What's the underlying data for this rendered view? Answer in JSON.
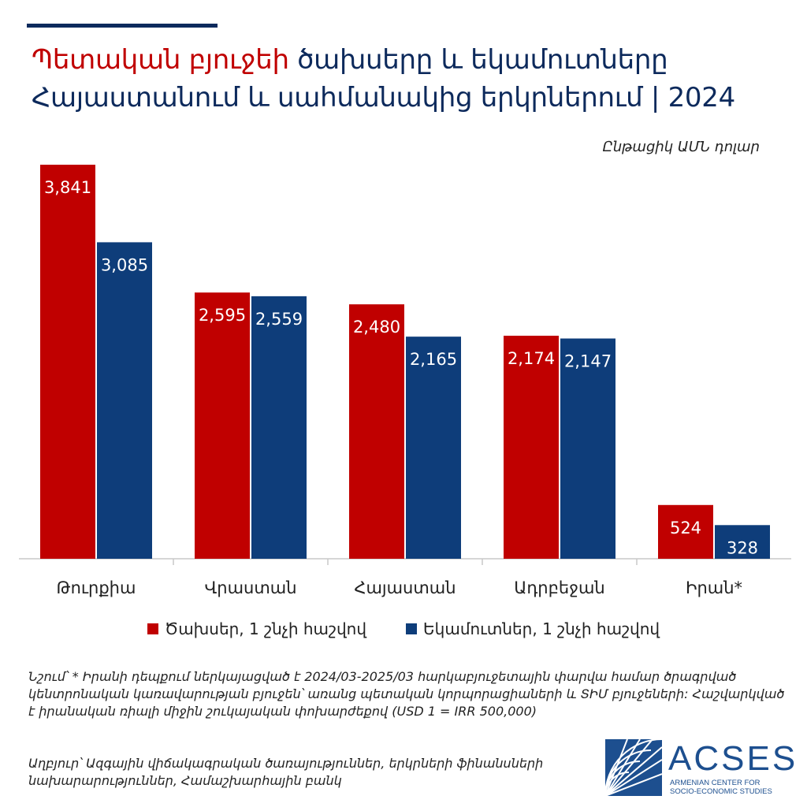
{
  "title": {
    "accent": "Պետական բյուջեի",
    "rest": " ծախսերը և եկամուտները Հայաստանում և սահմանակից երկրներում | 2024"
  },
  "units": "Ընթացիկ ԱՄՆ դոլար",
  "colors": {
    "expenses": "#c00000",
    "revenues": "#0e3d7a",
    "title": "#0d2a5c"
  },
  "chart_data": {
    "type": "bar",
    "categories": [
      "Թուրքիա",
      "Վրաստան",
      "Հայաստան",
      "Ադրբեջան",
      "Իրան*"
    ],
    "series": [
      {
        "name": "Ծախսեր, 1 շնչի հաշվով",
        "values": [
          3841,
          2595,
          2480,
          2174,
          524
        ],
        "labels": [
          "3,841",
          "2,595",
          "2,480",
          "2,174",
          "524"
        ]
      },
      {
        "name": "Եկամուտներ, 1 շնչի հաշվով",
        "values": [
          3085,
          2559,
          2165,
          2147,
          328
        ],
        "labels": [
          "3,085",
          "2,559",
          "2,165",
          "2,147",
          "328"
        ]
      }
    ],
    "ylim": [
      0,
      4000
    ],
    "grid": false,
    "legend_position": "bottom"
  },
  "legend": {
    "expenses": "Ծախսեր, 1 շնչի հաշվով",
    "revenues": "Եկամուտներ, 1 շնչի հաշվով"
  },
  "note": "Նշում՝ * Իրանի դեպքում ներկայացված է 2024/03-2025/03 հարկաբյուջետային փարվա համար ծրագրված կենտրոնական կառավարության բյուջեն՝ առանց պետական կորպորացիաների և ՏԻՄ բյուջեների: Հաշվարկված է իրանական ռիալի միջին շուկայական փոխարժեքով (USD 1 = IRR 500,000)",
  "source": "Աղբյուր՝ Ազգային վիճակագրական ծառայություններ, երկրների ֆինանսների նախարարություններ, Համաշխարհային բանկ",
  "logo": {
    "name": "ACSES",
    "subtitle_line1": "ARMENIAN CENTER FOR",
    "subtitle_line2": "SOCIO-ECONOMIC STUDIES"
  }
}
